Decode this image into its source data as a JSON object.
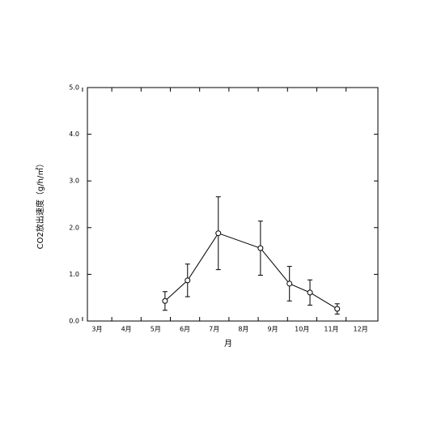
{
  "chart_data": {
    "type": "line",
    "x_label": "月",
    "y_label": "CO2放出速度（g/h/㎡）",
    "x": [
      5.32,
      6.09,
      7.14,
      8.58,
      9.57,
      10.27,
      11.2
    ],
    "series": [
      {
        "color": "#000000",
        "values": [
          0.43,
          0.87,
          1.88,
          1.56,
          0.8,
          0.61,
          0.26
        ],
        "errors": [
          0.2,
          0.35,
          0.78,
          0.58,
          0.37,
          0.27,
          0.11
        ]
      }
    ],
    "xlim": [
      2.67,
      12.59
    ],
    "xticks": [
      {
        "value": 3,
        "label": "3月"
      },
      {
        "value": 4,
        "label": "4月"
      },
      {
        "value": 5,
        "label": "5月"
      },
      {
        "value": 6,
        "label": "6月"
      },
      {
        "value": 7,
        "label": "7月"
      },
      {
        "value": 8,
        "label": "8月"
      },
      {
        "value": 9,
        "label": "9月"
      },
      {
        "value": 10,
        "label": "10月"
      },
      {
        "value": 11,
        "label": "11月"
      },
      {
        "value": 12,
        "label": "12月"
      }
    ],
    "ylim": [
      0,
      5
    ],
    "yticks": [
      {
        "value": 0,
        "label": "0.0"
      },
      {
        "value": 1,
        "label": "1.0"
      },
      {
        "value": 2,
        "label": "2.0"
      },
      {
        "value": 3,
        "label": "3.0"
      },
      {
        "value": 4,
        "label": "4.0"
      },
      {
        "value": 5,
        "label": "5.0"
      }
    ]
  }
}
